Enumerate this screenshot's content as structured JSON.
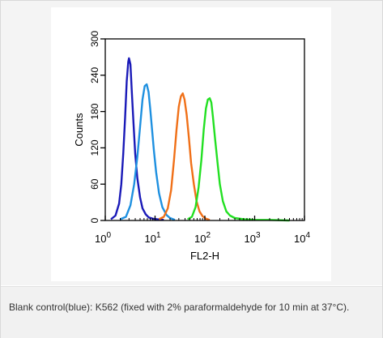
{
  "chart_data": {
    "type": "line",
    "xlabel": "FL2-H",
    "ylabel": "Counts",
    "x_scale": "log",
    "xlim": [
      1,
      10000
    ],
    "ylim": [
      0,
      300
    ],
    "x_ticks": [
      1,
      10,
      100,
      1000,
      10000
    ],
    "x_tick_labels": [
      {
        "base": "10",
        "exp": "0"
      },
      {
        "base": "10",
        "exp": "1"
      },
      {
        "base": "10",
        "exp": "2"
      },
      {
        "base": "10",
        "exp": "3"
      },
      {
        "base": "10",
        "exp": "4"
      }
    ],
    "y_ticks": [
      0,
      60,
      120,
      180,
      240,
      300
    ],
    "y_tick_labels": [
      "0",
      "60",
      "120",
      "180",
      "240",
      "300"
    ],
    "grid": false,
    "legend": "none",
    "series": [
      {
        "color": "#1a1ab8",
        "x": [
          1.3,
          1.6,
          1.9,
          2.1,
          2.3,
          2.5,
          2.7,
          2.9,
          3.0,
          3.2,
          3.4,
          3.7,
          4.0,
          4.4,
          5.0,
          5.6,
          6.5,
          7.5,
          9.0,
          11,
          15
        ],
        "y": [
          2,
          8,
          28,
          60,
          110,
          170,
          230,
          262,
          268,
          258,
          215,
          160,
          110,
          70,
          38,
          20,
          10,
          5,
          3,
          2,
          1
        ]
      },
      {
        "color": "#1e90e0",
        "x": [
          2.0,
          2.6,
          3.2,
          3.8,
          4.4,
          5.0,
          5.6,
          6.2,
          6.8,
          7.4,
          8.0,
          8.7,
          9.5,
          10.5,
          12,
          14,
          17,
          20,
          25
        ],
        "y": [
          2,
          6,
          25,
          60,
          105,
          155,
          200,
          222,
          225,
          212,
          185,
          150,
          115,
          80,
          45,
          22,
          9,
          4,
          1
        ]
      },
      {
        "color": "#f07018",
        "x": [
          12,
          15,
          18,
          21,
          24,
          27,
          30,
          33,
          36,
          39,
          43,
          48,
          53,
          60,
          68,
          78,
          90,
          105,
          125
        ],
        "y": [
          2,
          6,
          20,
          50,
          100,
          150,
          188,
          205,
          210,
          200,
          175,
          135,
          95,
          60,
          32,
          15,
          7,
          3,
          1
        ]
      },
      {
        "color": "#22e022",
        "x": [
          45,
          55,
          65,
          75,
          85,
          95,
          105,
          115,
          125,
          135,
          145,
          160,
          180,
          200,
          230,
          270,
          320,
          400,
          600,
          1000,
          2000,
          5000
        ],
        "y": [
          2,
          6,
          22,
          55,
          100,
          150,
          185,
          200,
          202,
          195,
          172,
          135,
          95,
          60,
          32,
          15,
          8,
          4,
          2,
          1,
          1,
          0
        ]
      }
    ]
  },
  "caption": {
    "text": "Blank control(blue): K562 (fixed with 2% paraformaldehyde for 10 min at 37°C)."
  }
}
